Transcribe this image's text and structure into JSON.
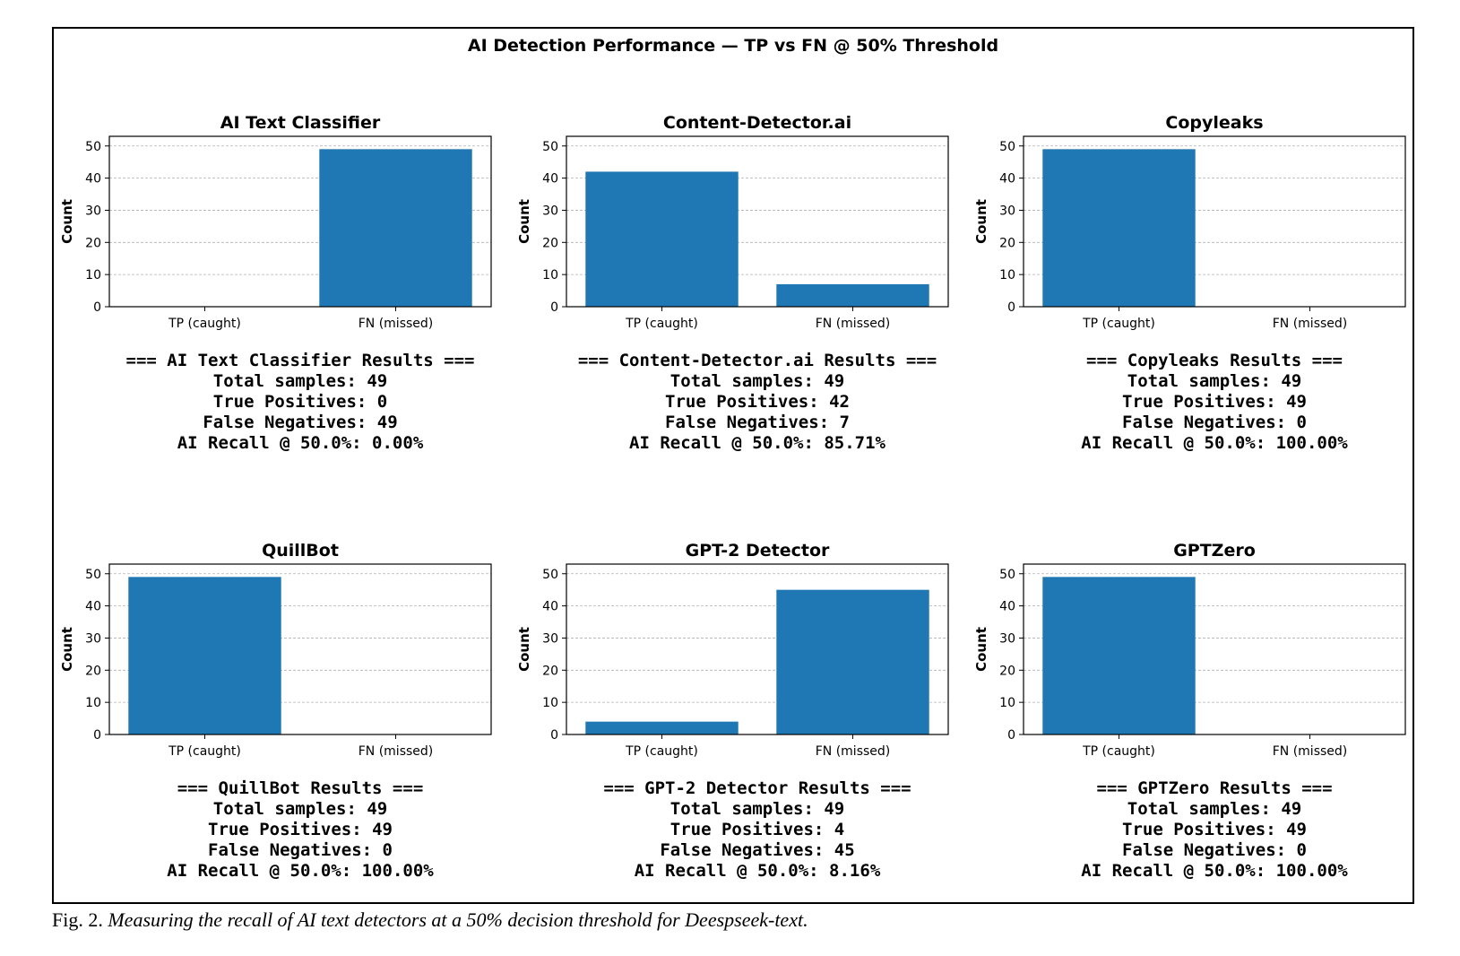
{
  "figure_title": "AI Detection Performance — TP vs FN @ 50% Threshold",
  "caption": {
    "label": "Fig. 2.",
    "text": "Measuring the recall of AI text detectors at a 50% decision threshold for Deespseek-text."
  },
  "colors": {
    "bar": "#1f77b4",
    "grid": "#b0b0b0",
    "axis": "#000000"
  },
  "chart_data": [
    {
      "type": "bar",
      "title": "AI Text Classifier",
      "categories": [
        "TP (caught)",
        "FN (missed)"
      ],
      "values": [
        0,
        49
      ],
      "ylabel": "Count",
      "xlabel": "",
      "ylim": [
        0,
        53
      ],
      "yticks": [
        0,
        10,
        20,
        30,
        40,
        50
      ],
      "grid": "y-dashed",
      "stats": [
        "=== AI Text Classifier Results ===",
        "Total samples: 49",
        "True Positives: 0",
        "False Negatives: 49",
        "AI Recall @ 50.0%: 0.00%"
      ]
    },
    {
      "type": "bar",
      "title": "Content-Detector.ai",
      "categories": [
        "TP (caught)",
        "FN (missed)"
      ],
      "values": [
        42,
        7
      ],
      "ylabel": "Count",
      "xlabel": "",
      "ylim": [
        0,
        53
      ],
      "yticks": [
        0,
        10,
        20,
        30,
        40,
        50
      ],
      "grid": "y-dashed",
      "stats": [
        "=== Content-Detector.ai Results ===",
        "Total samples: 49",
        "True Positives: 42",
        "False Negatives: 7",
        "AI Recall @ 50.0%: 85.71%"
      ]
    },
    {
      "type": "bar",
      "title": "Copyleaks",
      "categories": [
        "TP (caught)",
        "FN (missed)"
      ],
      "values": [
        49,
        0
      ],
      "ylabel": "Count",
      "xlabel": "",
      "ylim": [
        0,
        53
      ],
      "yticks": [
        0,
        10,
        20,
        30,
        40,
        50
      ],
      "grid": "y-dashed",
      "stats": [
        "=== Copyleaks Results ===",
        "Total samples: 49",
        "True Positives: 49",
        "False Negatives: 0",
        "AI Recall @ 50.0%: 100.00%"
      ]
    },
    {
      "type": "bar",
      "title": "QuillBot",
      "categories": [
        "TP (caught)",
        "FN (missed)"
      ],
      "values": [
        49,
        0
      ],
      "ylabel": "Count",
      "xlabel": "",
      "ylim": [
        0,
        53
      ],
      "yticks": [
        0,
        10,
        20,
        30,
        40,
        50
      ],
      "grid": "y-dashed",
      "stats": [
        "=== QuillBot Results ===",
        "Total samples: 49",
        "True Positives: 49",
        "False Negatives: 0",
        "AI Recall @ 50.0%: 100.00%"
      ]
    },
    {
      "type": "bar",
      "title": "GPT-2 Detector",
      "categories": [
        "TP (caught)",
        "FN (missed)"
      ],
      "values": [
        4,
        45
      ],
      "ylabel": "Count",
      "xlabel": "",
      "ylim": [
        0,
        53
      ],
      "yticks": [
        0,
        10,
        20,
        30,
        40,
        50
      ],
      "grid": "y-dashed",
      "stats": [
        "=== GPT-2 Detector Results ===",
        "Total samples: 49",
        "True Positives: 4",
        "False Negatives: 45",
        "AI Recall @ 50.0%: 8.16%"
      ]
    },
    {
      "type": "bar",
      "title": "GPTZero",
      "categories": [
        "TP (caught)",
        "FN (missed)"
      ],
      "values": [
        49,
        0
      ],
      "ylabel": "Count",
      "xlabel": "",
      "ylim": [
        0,
        53
      ],
      "yticks": [
        0,
        10,
        20,
        30,
        40,
        50
      ],
      "grid": "y-dashed",
      "stats": [
        "=== GPTZero Results ===",
        "Total samples: 49",
        "True Positives: 49",
        "False Negatives: 0",
        "AI Recall @ 50.0%: 100.00%"
      ]
    }
  ]
}
